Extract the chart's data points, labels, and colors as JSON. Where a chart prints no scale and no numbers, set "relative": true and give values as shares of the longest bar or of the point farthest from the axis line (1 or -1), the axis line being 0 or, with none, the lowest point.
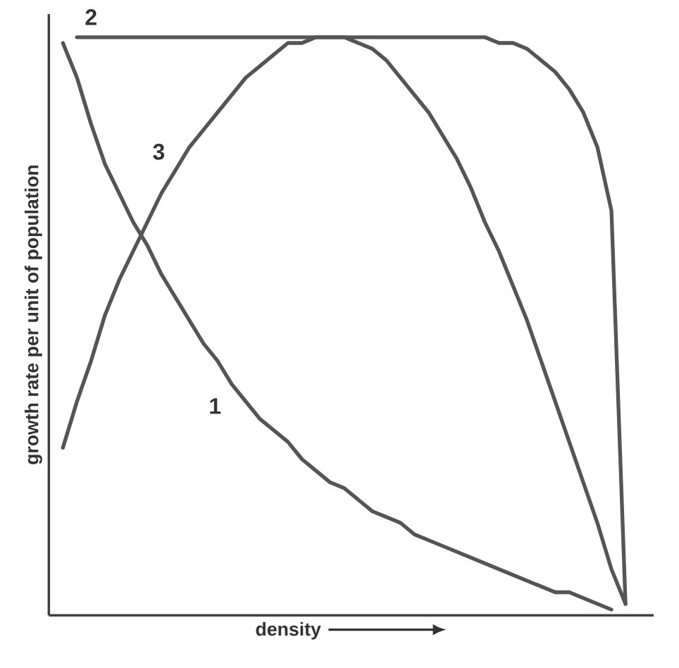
{
  "chart_data": {
    "type": "line",
    "relative": true,
    "xlabel": "density",
    "ylabel": "growth rate per unit of population",
    "categories": [
      null,
      null,
      null,
      null,
      null,
      null,
      null,
      null,
      null,
      null,
      null,
      null,
      null,
      null,
      null,
      null,
      null,
      null,
      null,
      null,
      null,
      null,
      null,
      null,
      null,
      null,
      null,
      null,
      null,
      null,
      null,
      null,
      null,
      null,
      null,
      null,
      null,
      null,
      null,
      null,
      null
    ],
    "series": [
      {
        "name": "1",
        "color": "#555555",
        "values": [
          0.99,
          0.93,
          0.85,
          0.78,
          0.73,
          0.68,
          0.64,
          0.59,
          0.55,
          0.51,
          0.47,
          0.44,
          0.4,
          0.37,
          0.34,
          0.32,
          0.3,
          0.27,
          0.25,
          0.23,
          0.22,
          0.2,
          0.18,
          0.17,
          0.16,
          0.14,
          0.13,
          0.12,
          0.11,
          0.1,
          0.09,
          0.08,
          0.07,
          0.06,
          0.05,
          0.04,
          0.04,
          0.03,
          0.02,
          0.01,
          null
        ]
      },
      {
        "name": "2",
        "color": "#555555",
        "values": [
          null,
          1.0,
          1.0,
          1.0,
          1.0,
          1.0,
          1.0,
          1.0,
          1.0,
          1.0,
          1.0,
          1.0,
          1.0,
          1.0,
          1.0,
          1.0,
          1.0,
          1.0,
          1.0,
          1.0,
          1.0,
          1.0,
          1.0,
          1.0,
          1.0,
          1.0,
          1.0,
          1.0,
          1.0,
          1.0,
          1.0,
          0.99,
          0.99,
          0.98,
          0.96,
          0.94,
          0.91,
          0.87,
          0.81,
          0.7,
          0.02
        ]
      },
      {
        "name": "3",
        "color": "#555555",
        "values": [
          0.29,
          0.37,
          0.44,
          0.52,
          0.58,
          0.63,
          0.68,
          0.73,
          0.77,
          0.81,
          0.84,
          0.87,
          0.9,
          0.93,
          0.95,
          0.97,
          0.99,
          0.99,
          1.0,
          1.0,
          1.0,
          0.99,
          0.98,
          0.96,
          0.93,
          0.9,
          0.87,
          0.83,
          0.79,
          0.74,
          0.68,
          0.63,
          0.57,
          0.51,
          0.44,
          0.37,
          0.3,
          0.23,
          0.16,
          0.08,
          0.02
        ]
      }
    ]
  }
}
